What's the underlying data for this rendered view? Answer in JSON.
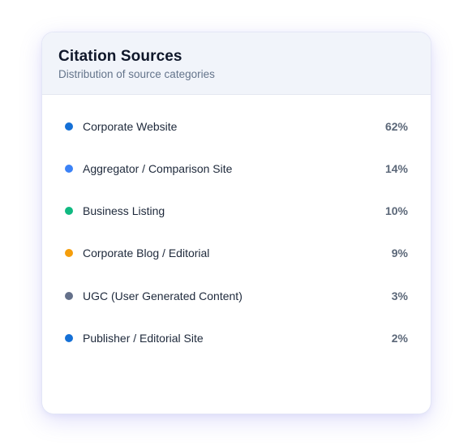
{
  "card": {
    "title": "Citation Sources",
    "subtitle": "Distribution of source categories"
  },
  "sources": [
    {
      "label": "Corporate Website",
      "value": "62%",
      "color": "#1570d6"
    },
    {
      "label": "Aggregator / Comparison Site",
      "value": "14%",
      "color": "#3b82f6"
    },
    {
      "label": "Business Listing",
      "value": "10%",
      "color": "#10b981"
    },
    {
      "label": "Corporate Blog / Editorial",
      "value": "9%",
      "color": "#f59e0b"
    },
    {
      "label": "UGC (User Generated Content)",
      "value": "3%",
      "color": "#64708a"
    },
    {
      "label": "Publisher / Editorial Site",
      "value": "2%",
      "color": "#1570d6"
    }
  ]
}
